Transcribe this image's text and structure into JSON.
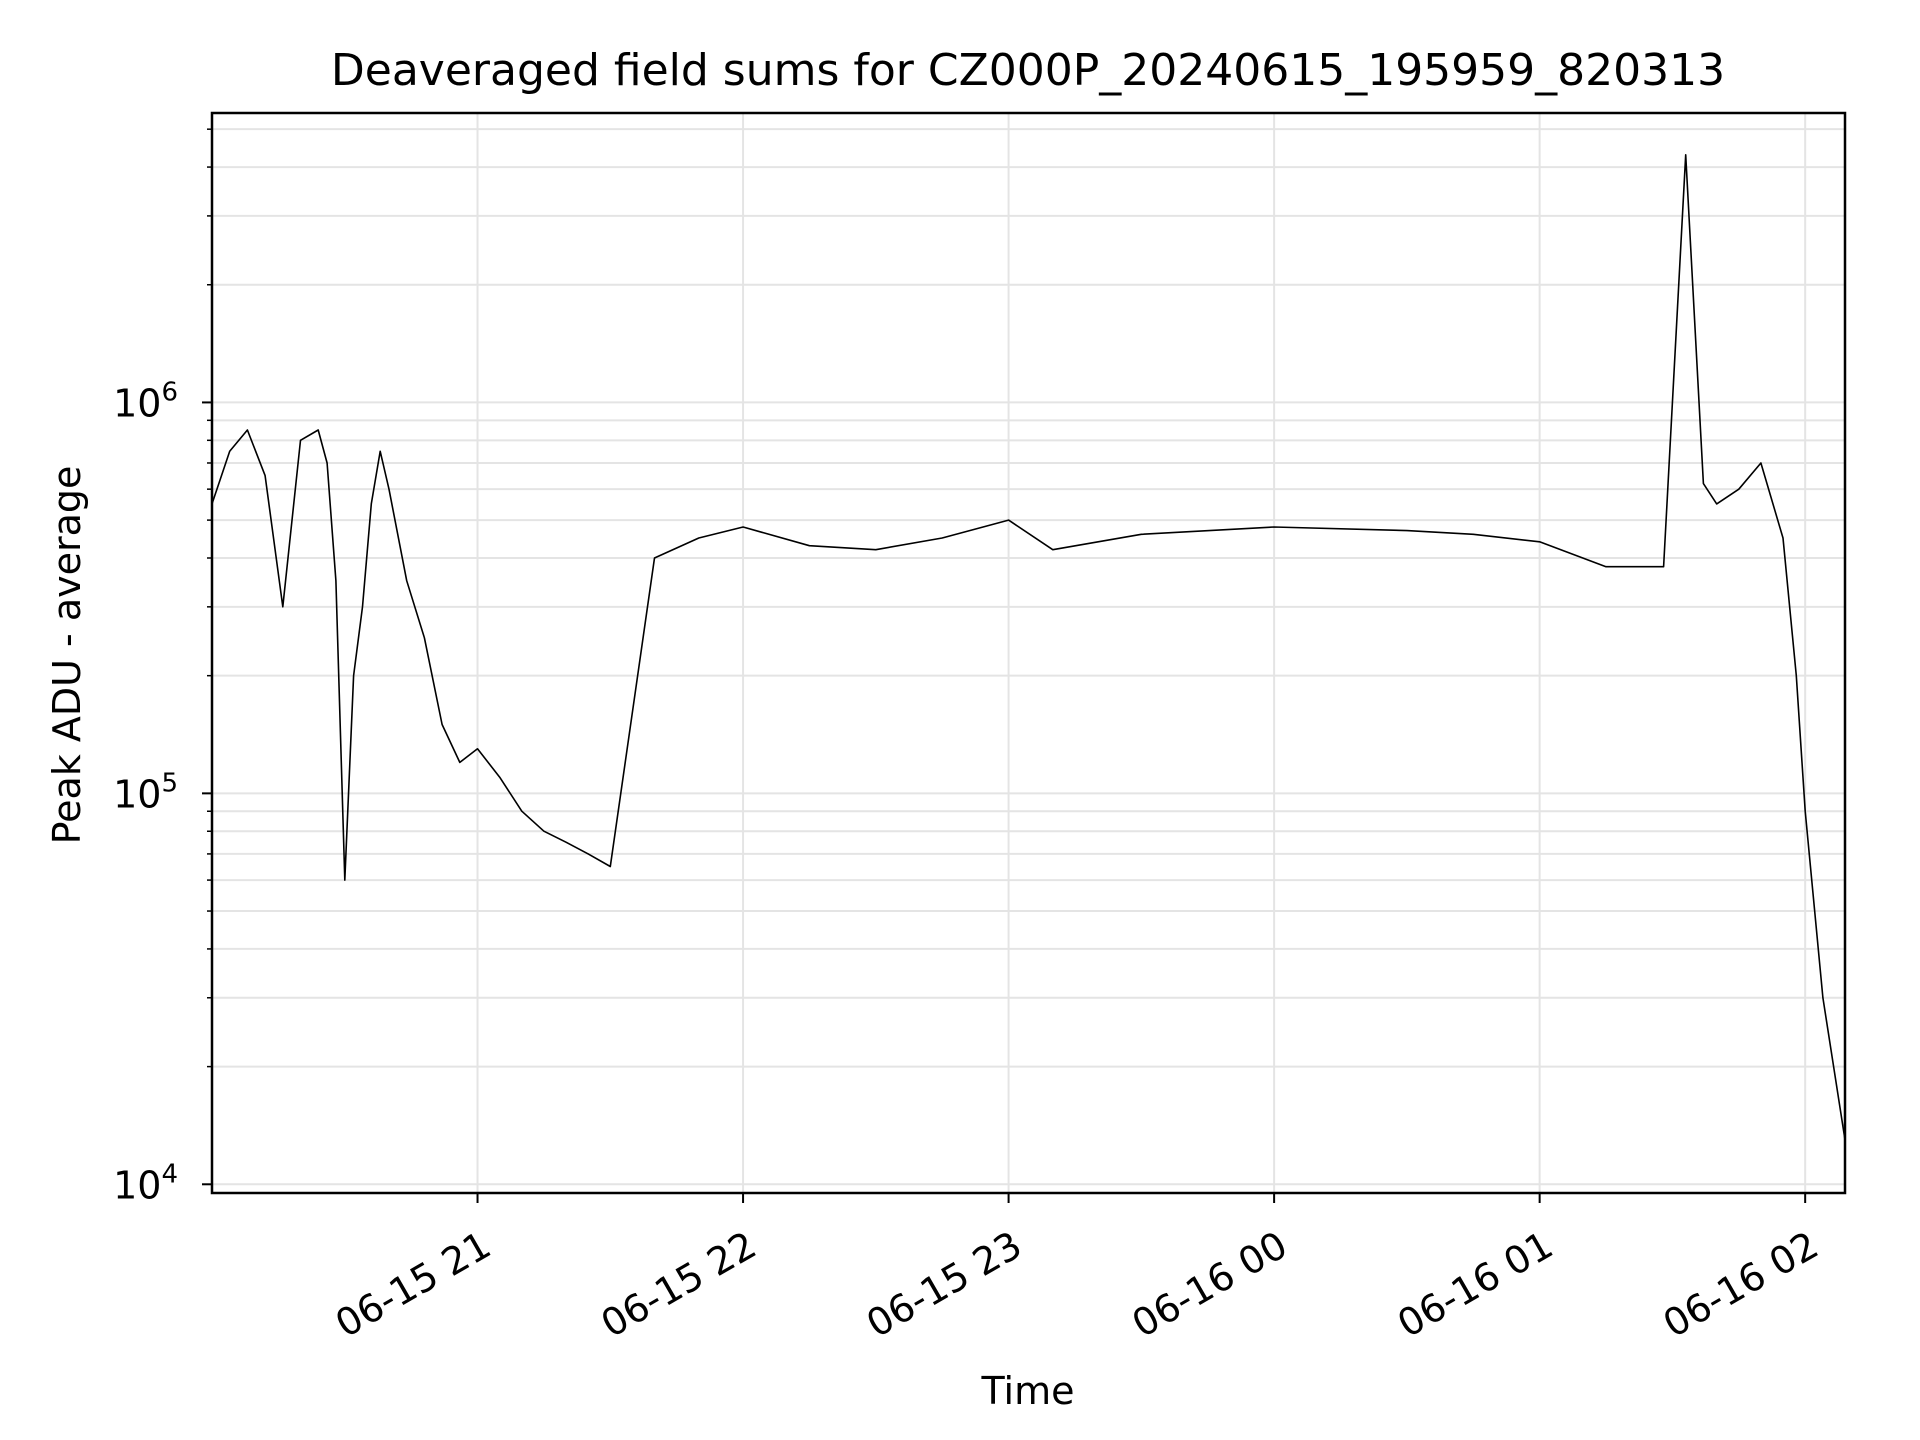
{
  "chart_data": {
    "type": "line",
    "title": "Deaveraged field sums for CZ000P_20240615_195959_820313",
    "xlabel": "Time",
    "ylabel": "Peak ADU - average",
    "yscale": "log",
    "ylim": [
      9500,
      5500000
    ],
    "xlim": [
      "2024-06-15T20:00:00",
      "2024-06-16T02:09:00"
    ],
    "grid": true,
    "color": "#000000",
    "x_ticks": [
      {
        "value": "2024-06-15T21:00:00",
        "label": "06-15 21"
      },
      {
        "value": "2024-06-15T22:00:00",
        "label": "06-15 22"
      },
      {
        "value": "2024-06-15T23:00:00",
        "label": "06-15 23"
      },
      {
        "value": "2024-06-16T00:00:00",
        "label": "06-16 00"
      },
      {
        "value": "2024-06-16T01:00:00",
        "label": "06-16 01"
      },
      {
        "value": "2024-06-16T02:00:00",
        "label": "06-16 02"
      }
    ],
    "y_ticks": [
      {
        "value": 10000,
        "base": "10",
        "exp": "4"
      },
      {
        "value": 100000,
        "base": "10",
        "exp": "5"
      },
      {
        "value": 1000000,
        "base": "10",
        "exp": "6"
      }
    ],
    "series": [
      {
        "x": [
          "2024-06-15T20:00:00",
          "2024-06-15T20:04:00",
          "2024-06-15T20:08:00",
          "2024-06-15T20:12:00",
          "2024-06-15T20:16:00",
          "2024-06-15T20:20:00",
          "2024-06-15T20:24:00",
          "2024-06-15T20:26:00",
          "2024-06-15T20:28:00",
          "2024-06-15T20:30:00",
          "2024-06-15T20:32:00",
          "2024-06-15T20:34:00",
          "2024-06-15T20:36:00",
          "2024-06-15T20:38:00",
          "2024-06-15T20:40:00",
          "2024-06-15T20:44:00",
          "2024-06-15T20:48:00",
          "2024-06-15T20:52:00",
          "2024-06-15T20:56:00",
          "2024-06-15T21:00:00",
          "2024-06-15T21:05:00",
          "2024-06-15T21:10:00",
          "2024-06-15T21:15:00",
          "2024-06-15T21:20:00",
          "2024-06-15T21:25:00",
          "2024-06-15T21:30:00",
          "2024-06-15T21:40:00",
          "2024-06-15T21:50:00",
          "2024-06-15T22:00:00",
          "2024-06-15T22:15:00",
          "2024-06-15T22:30:00",
          "2024-06-15T22:45:00",
          "2024-06-15T23:00:00",
          "2024-06-15T23:10:00",
          "2024-06-15T23:30:00",
          "2024-06-16T00:00:00",
          "2024-06-16T00:30:00",
          "2024-06-16T00:45:00",
          "2024-06-16T01:00:00",
          "2024-06-16T01:15:00",
          "2024-06-16T01:28:00",
          "2024-06-16T01:33:00",
          "2024-06-16T01:37:00",
          "2024-06-16T01:40:00",
          "2024-06-16T01:45:00",
          "2024-06-16T01:50:00",
          "2024-06-16T01:55:00",
          "2024-06-16T01:58:00",
          "2024-06-16T02:00:00",
          "2024-06-16T02:04:00",
          "2024-06-16T02:09:00"
        ],
        "y": [
          550000,
          750000,
          850000,
          650000,
          300000,
          800000,
          850000,
          700000,
          350000,
          60000,
          200000,
          300000,
          550000,
          750000,
          600000,
          350000,
          250000,
          150000,
          120000,
          130000,
          110000,
          90000,
          80000,
          75000,
          70000,
          65000,
          400000,
          450000,
          480000,
          430000,
          420000,
          450000,
          500000,
          420000,
          460000,
          480000,
          470000,
          460000,
          440000,
          380000,
          380000,
          4300000,
          620000,
          550000,
          600000,
          700000,
          450000,
          200000,
          90000,
          30000,
          13000
        ]
      }
    ]
  }
}
